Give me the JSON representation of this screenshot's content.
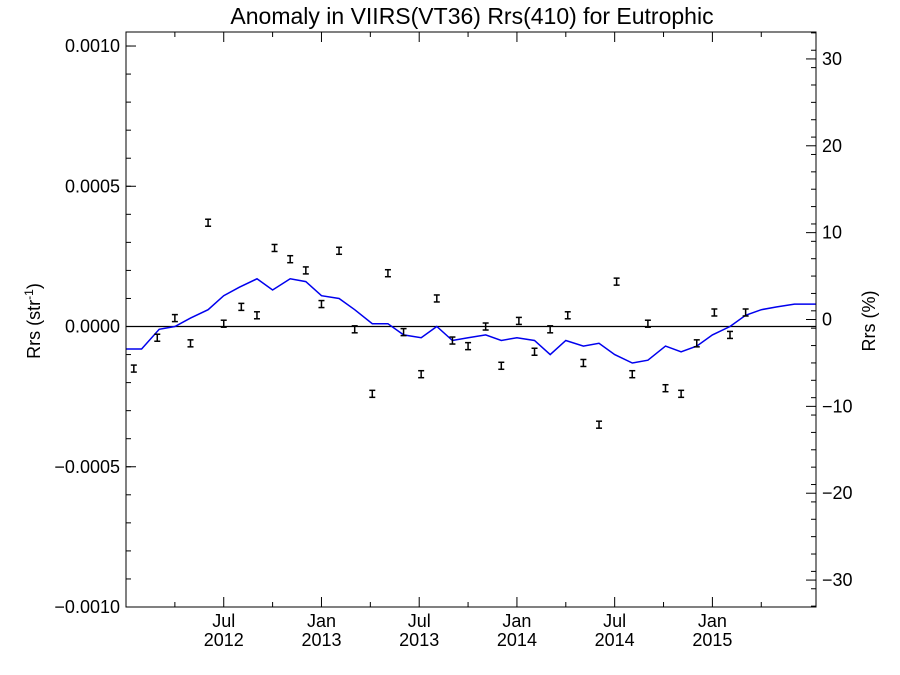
{
  "chart_data": {
    "type": "scatter",
    "title": "Anomaly in VIIRS(VT36) Rrs(410) for Eutrophic",
    "ylabel_left_main": "Rrs (str",
    "ylabel_left_sup": "-1",
    "ylabel_left_end": ")",
    "ylabel_right": "Rrs (%)",
    "xlim": [
      2012.0,
      2015.53
    ],
    "ylim": [
      -0.001,
      0.00105
    ],
    "ylim_right": [
      -33.1,
      33.1
    ],
    "x_ticks": [
      {
        "x": 2012.5,
        "top": "Jul",
        "bottom": "2012"
      },
      {
        "x": 2013.0,
        "top": "Jan",
        "bottom": "2013"
      },
      {
        "x": 2013.5,
        "top": "Jul",
        "bottom": "2013"
      },
      {
        "x": 2014.0,
        "top": "Jan",
        "bottom": "2014"
      },
      {
        "x": 2014.5,
        "top": "Jul",
        "bottom": "2014"
      },
      {
        "x": 2015.0,
        "top": "Jan",
        "bottom": "2015"
      }
    ],
    "y_ticks_left": [
      {
        "value": -0.001,
        "label": "−0.0010"
      },
      {
        "value": -0.0005,
        "label": "−0.0005"
      },
      {
        "value": 0.0,
        "label": "0.0000"
      },
      {
        "value": 0.0005,
        "label": "0.0005"
      },
      {
        "value": 0.001,
        "label": "0.0010"
      }
    ],
    "y_ticks_right": [
      {
        "value": -30,
        "label": "−30"
      },
      {
        "value": -20,
        "label": "−20"
      },
      {
        "value": -10,
        "label": "−10"
      },
      {
        "value": 0,
        "label": "0"
      },
      {
        "value": 10,
        "label": "10"
      },
      {
        "value": 20,
        "label": "20"
      },
      {
        "value": 30,
        "label": "30"
      }
    ],
    "reference_line_y": 0,
    "series": [
      {
        "style": "points-with-errorbars",
        "color": "#000000",
        "points": [
          {
            "x": 2012.04,
            "y": -0.00015
          },
          {
            "x": 2012.16,
            "y": -4e-05
          },
          {
            "x": 2012.25,
            "y": 3e-05
          },
          {
            "x": 2012.33,
            "y": -6e-05
          },
          {
            "x": 2012.42,
            "y": 0.00037
          },
          {
            "x": 2012.5,
            "y": 1e-05
          },
          {
            "x": 2012.59,
            "y": 7e-05
          },
          {
            "x": 2012.67,
            "y": 4e-05
          },
          {
            "x": 2012.76,
            "y": 0.00028
          },
          {
            "x": 2012.84,
            "y": 0.00024
          },
          {
            "x": 2012.92,
            "y": 0.0002
          },
          {
            "x": 2013.0,
            "y": 8e-05
          },
          {
            "x": 2013.09,
            "y": 0.00027
          },
          {
            "x": 2013.17,
            "y": -1e-05
          },
          {
            "x": 2013.26,
            "y": -0.00024
          },
          {
            "x": 2013.34,
            "y": 0.00019
          },
          {
            "x": 2013.42,
            "y": -2e-05
          },
          {
            "x": 2013.51,
            "y": -0.00017
          },
          {
            "x": 2013.59,
            "y": 0.0001
          },
          {
            "x": 2013.67,
            "y": -5e-05
          },
          {
            "x": 2013.75,
            "y": -7e-05
          },
          {
            "x": 2013.84,
            "y": 0.0
          },
          {
            "x": 2013.92,
            "y": -0.00014
          },
          {
            "x": 2014.01,
            "y": 2e-05
          },
          {
            "x": 2014.09,
            "y": -9e-05
          },
          {
            "x": 2014.17,
            "y": -1e-05
          },
          {
            "x": 2014.26,
            "y": 4e-05
          },
          {
            "x": 2014.34,
            "y": -0.00013
          },
          {
            "x": 2014.42,
            "y": -0.00035
          },
          {
            "x": 2014.51,
            "y": 0.00016
          },
          {
            "x": 2014.59,
            "y": -0.00017
          },
          {
            "x": 2014.67,
            "y": 1e-05
          },
          {
            "x": 2014.76,
            "y": -0.00022
          },
          {
            "x": 2014.84,
            "y": -0.00024
          },
          {
            "x": 2014.92,
            "y": -6e-05
          },
          {
            "x": 2015.01,
            "y": 5e-05
          },
          {
            "x": 2015.09,
            "y": -3e-05
          },
          {
            "x": 2015.17,
            "y": 5e-05
          }
        ]
      },
      {
        "style": "line",
        "color": "#0000ee",
        "points": [
          {
            "x": 2012.0,
            "y": -8e-05
          },
          {
            "x": 2012.08,
            "y": -8e-05
          },
          {
            "x": 2012.17,
            "y": -1e-05
          },
          {
            "x": 2012.25,
            "y": 0.0
          },
          {
            "x": 2012.33,
            "y": 3e-05
          },
          {
            "x": 2012.42,
            "y": 6e-05
          },
          {
            "x": 2012.5,
            "y": 0.00011
          },
          {
            "x": 2012.58,
            "y": 0.00014
          },
          {
            "x": 2012.67,
            "y": 0.00017
          },
          {
            "x": 2012.75,
            "y": 0.00013
          },
          {
            "x": 2012.84,
            "y": 0.00017
          },
          {
            "x": 2012.92,
            "y": 0.00016
          },
          {
            "x": 2013.0,
            "y": 0.00011
          },
          {
            "x": 2013.09,
            "y": 0.0001
          },
          {
            "x": 2013.17,
            "y": 6e-05
          },
          {
            "x": 2013.26,
            "y": 1e-05
          },
          {
            "x": 2013.34,
            "y": 1e-05
          },
          {
            "x": 2013.42,
            "y": -3e-05
          },
          {
            "x": 2013.51,
            "y": -4e-05
          },
          {
            "x": 2013.59,
            "y": 0.0
          },
          {
            "x": 2013.67,
            "y": -5e-05
          },
          {
            "x": 2013.75,
            "y": -4e-05
          },
          {
            "x": 2013.84,
            "y": -3e-05
          },
          {
            "x": 2013.92,
            "y": -5e-05
          },
          {
            "x": 2014.0,
            "y": -4e-05
          },
          {
            "x": 2014.09,
            "y": -5e-05
          },
          {
            "x": 2014.17,
            "y": -0.0001
          },
          {
            "x": 2014.25,
            "y": -5e-05
          },
          {
            "x": 2014.34,
            "y": -7e-05
          },
          {
            "x": 2014.42,
            "y": -6e-05
          },
          {
            "x": 2014.5,
            "y": -0.0001
          },
          {
            "x": 2014.59,
            "y": -0.00013
          },
          {
            "x": 2014.67,
            "y": -0.00012
          },
          {
            "x": 2014.76,
            "y": -7e-05
          },
          {
            "x": 2014.84,
            "y": -9e-05
          },
          {
            "x": 2014.92,
            "y": -7e-05
          },
          {
            "x": 2015.0,
            "y": -3e-05
          },
          {
            "x": 2015.09,
            "y": 0.0
          },
          {
            "x": 2015.17,
            "y": 4e-05
          },
          {
            "x": 2015.25,
            "y": 6e-05
          },
          {
            "x": 2015.33,
            "y": 7e-05
          },
          {
            "x": 2015.42,
            "y": 8e-05
          },
          {
            "x": 2015.53,
            "y": 8e-05
          }
        ]
      }
    ]
  }
}
